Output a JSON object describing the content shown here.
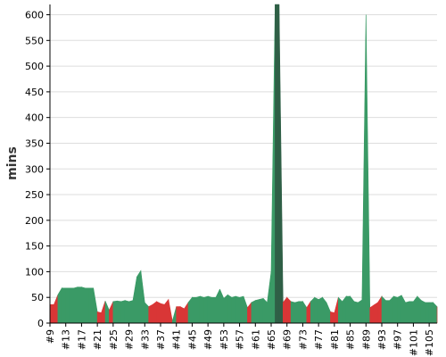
{
  "chart_data": {
    "type": "area",
    "title": "",
    "xlabel": "",
    "ylabel": "mins",
    "ylim": [
      0,
      620
    ],
    "yticks": [
      0,
      50,
      100,
      150,
      200,
      250,
      300,
      350,
      400,
      450,
      500,
      550,
      600
    ],
    "grid": "horizontal",
    "legend": "none",
    "x_range": [
      9,
      107
    ],
    "x_tick_labels": [
      "#9",
      "#13",
      "#17",
      "#21",
      "#25",
      "#29",
      "#33",
      "#37",
      "#41",
      "#45",
      "#49",
      "#53",
      "#57",
      "#61",
      "#65",
      "#69",
      "#73",
      "#77",
      "#81",
      "#85",
      "#89",
      "#93",
      "#97",
      "#101",
      "#105"
    ],
    "colors": {
      "green": "#3a9a66",
      "red": "#d93636",
      "dark": "#2f5f46",
      "grid": "#dddddd",
      "axis": "#000000"
    },
    "series": [
      {
        "x": [
          9,
          10,
          11,
          12,
          13,
          14,
          15,
          16,
          17,
          18,
          19,
          20,
          21,
          22,
          23,
          24,
          25,
          26,
          27,
          28,
          29,
          30,
          31,
          32,
          33,
          34,
          35,
          36,
          37,
          38,
          39,
          40,
          41,
          42,
          43,
          44,
          45,
          46,
          47,
          48,
          49,
          50,
          51,
          52,
          53,
          54,
          55,
          56,
          57,
          58,
          59,
          60,
          61,
          62,
          63,
          64,
          65,
          66,
          67,
          68,
          69,
          70,
          71,
          72,
          73,
          74,
          75,
          76,
          77,
          78,
          79,
          80,
          81,
          82,
          83,
          84,
          85,
          86,
          87,
          88,
          89,
          90,
          91,
          92,
          93,
          94,
          95,
          96,
          97,
          98,
          99,
          100,
          101,
          102,
          103,
          104,
          105,
          106,
          107
        ],
        "y": [
          36,
          36,
          55,
          68,
          68,
          68,
          68,
          70,
          70,
          68,
          68,
          68,
          22,
          20,
          43,
          25,
          42,
          43,
          42,
          44,
          42,
          44,
          90,
          102,
          40,
          32,
          36,
          42,
          38,
          36,
          46,
          4,
          32,
          32,
          28,
          40,
          50,
          50,
          52,
          50,
          52,
          50,
          50,
          66,
          48,
          55,
          50,
          52,
          50,
          52,
          30,
          40,
          44,
          46,
          48,
          40,
          100,
          620,
          620,
          40,
          50,
          42,
          40,
          42,
          42,
          30,
          42,
          50,
          46,
          50,
          40,
          22,
          20,
          50,
          42,
          52,
          52,
          42,
          40,
          45,
          600,
          30,
          35,
          40,
          52,
          44,
          44,
          52,
          50,
          54,
          40,
          42,
          42,
          52,
          44,
          40,
          40,
          40,
          32
        ],
        "status": [
          "r",
          "r",
          "g",
          "g",
          "g",
          "g",
          "g",
          "g",
          "g",
          "g",
          "g",
          "g",
          "r",
          "r",
          "g",
          "r",
          "g",
          "g",
          "g",
          "g",
          "g",
          "g",
          "g",
          "g",
          "g",
          "r",
          "r",
          "r",
          "r",
          "r",
          "r",
          "g",
          "r",
          "r",
          "r",
          "g",
          "g",
          "g",
          "g",
          "g",
          "g",
          "g",
          "g",
          "g",
          "g",
          "g",
          "g",
          "g",
          "g",
          "g",
          "r",
          "g",
          "g",
          "g",
          "g",
          "g",
          "g",
          "d",
          "d",
          "r",
          "r",
          "g",
          "g",
          "g",
          "g",
          "r",
          "g",
          "g",
          "g",
          "g",
          "g",
          "r",
          "r",
          "g",
          "g",
          "g",
          "g",
          "g",
          "g",
          "g",
          "g",
          "r",
          "r",
          "r",
          "g",
          "g",
          "g",
          "g",
          "g",
          "g",
          "g",
          "g",
          "g",
          "g",
          "g",
          "g",
          "g",
          "g",
          "r"
        ]
      }
    ]
  }
}
